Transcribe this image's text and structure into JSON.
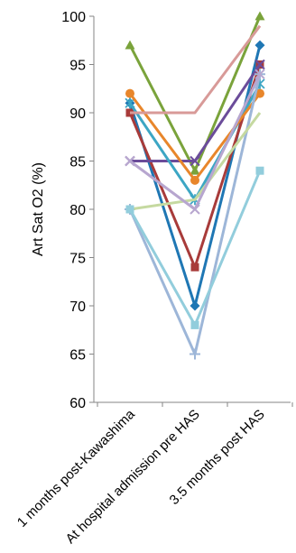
{
  "chart_data": {
    "type": "line",
    "categories": [
      "1 months post-Kawashima",
      "At hospital admission pre HAS",
      "3.5 months post HAS"
    ],
    "ylabel": "Art Sat O2 (%)",
    "ylim": [
      60,
      100
    ],
    "yticks": [
      60,
      65,
      70,
      75,
      80,
      85,
      90,
      95,
      100
    ],
    "grid": false,
    "legend": "none",
    "series": [
      {
        "color": "#1f77b4",
        "marker": "diamond",
        "values": [
          91,
          70,
          97
        ]
      },
      {
        "color": "#a83b3a",
        "marker": "square",
        "values": [
          90,
          74,
          95
        ]
      },
      {
        "color": "#7aa33b",
        "marker": "triangle",
        "values": [
          97,
          84,
          100
        ]
      },
      {
        "color": "#6b4c9a",
        "marker": "x",
        "values": [
          85,
          85,
          95
        ]
      },
      {
        "color": "#3ca6c4",
        "marker": "star",
        "values": [
          91,
          81,
          93
        ]
      },
      {
        "color": "#e8862b",
        "marker": "circle",
        "values": [
          92,
          83,
          92
        ]
      },
      {
        "color": "#9db6d8",
        "marker": "plus",
        "values": [
          80,
          65,
          94
        ]
      },
      {
        "color": "#d89a98",
        "marker": "none",
        "values": [
          90,
          90,
          99
        ]
      },
      {
        "color": "#c5d9a0",
        "marker": "none",
        "values": [
          80,
          81,
          90
        ]
      },
      {
        "color": "#b7a6cf",
        "marker": "x",
        "values": [
          85,
          80,
          94
        ]
      },
      {
        "color": "#92cddc",
        "marker": "square",
        "values": [
          80,
          68,
          84
        ]
      }
    ]
  }
}
